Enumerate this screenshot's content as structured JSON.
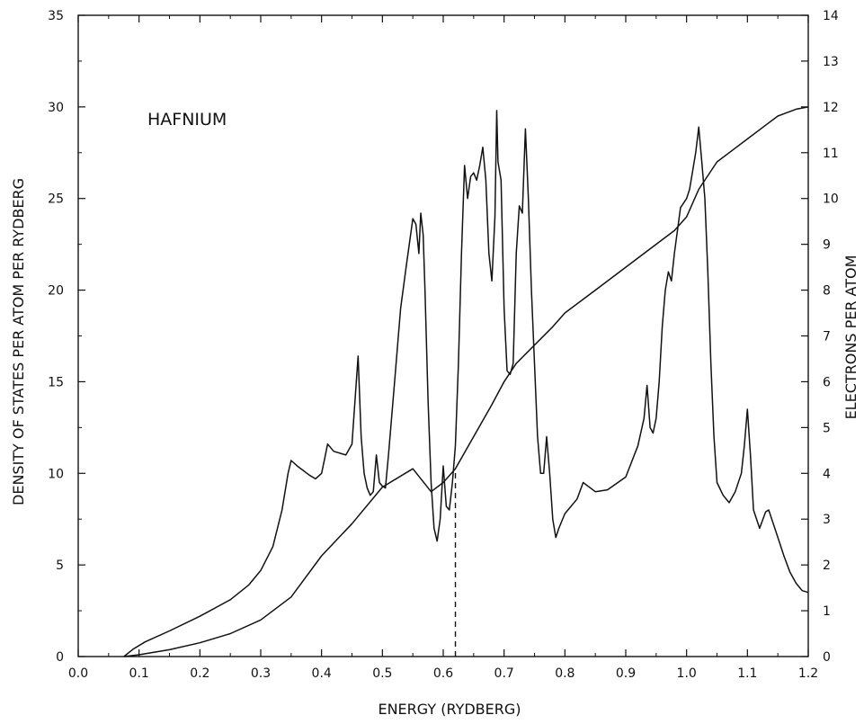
{
  "chart_data": {
    "type": "line",
    "annotation": "HAFNIUM",
    "xlabel": "ENERGY (RYDBERG)",
    "ylabel": "DENSITY OF STATES PER ATOM PER RYDBERG",
    "y2label": "ELECTRONS PER ATOM",
    "xlim": [
      0.0,
      1.2
    ],
    "ylim": [
      0,
      35
    ],
    "y2lim": [
      0,
      14
    ],
    "x_ticks": [
      "0.0",
      "0.1",
      "0.2",
      "0.3",
      "0.4",
      "0.5",
      "0.6",
      "0.7",
      "0.8",
      "0.9",
      "1.0",
      "1.1",
      "1.2"
    ],
    "y_ticks": [
      "0",
      "5",
      "10",
      "15",
      "20",
      "25",
      "30",
      "35"
    ],
    "y2_ticks": [
      "0",
      "1",
      "2",
      "3",
      "4",
      "5",
      "6",
      "7",
      "8",
      "9",
      "10",
      "11",
      "12",
      "13",
      "14"
    ],
    "fermi_energy": 0.62,
    "grid": false,
    "series": [
      {
        "axis": "left",
        "x": [
          0.075,
          0.09,
          0.11,
          0.15,
          0.2,
          0.25,
          0.28,
          0.3,
          0.32,
          0.335,
          0.345,
          0.35,
          0.36,
          0.38,
          0.39,
          0.4,
          0.405,
          0.41,
          0.42,
          0.44,
          0.45,
          0.455,
          0.46,
          0.465,
          0.47,
          0.475,
          0.48,
          0.485,
          0.49,
          0.495,
          0.5,
          0.505,
          0.51,
          0.52,
          0.53,
          0.54,
          0.55,
          0.555,
          0.56,
          0.563,
          0.567,
          0.57,
          0.575,
          0.58,
          0.585,
          0.59,
          0.595,
          0.6,
          0.605,
          0.61,
          0.615,
          0.62,
          0.625,
          0.63,
          0.635,
          0.64,
          0.645,
          0.65,
          0.655,
          0.66,
          0.665,
          0.67,
          0.675,
          0.68,
          0.685,
          0.688,
          0.69,
          0.695,
          0.7,
          0.705,
          0.71,
          0.715,
          0.72,
          0.725,
          0.73,
          0.735,
          0.74,
          0.745,
          0.75,
          0.755,
          0.76,
          0.765,
          0.77,
          0.775,
          0.78,
          0.785,
          0.79,
          0.8,
          0.81,
          0.82,
          0.83,
          0.85,
          0.87,
          0.9,
          0.92,
          0.93,
          0.935,
          0.94,
          0.945,
          0.95,
          0.955,
          0.96,
          0.965,
          0.97,
          0.975,
          0.98,
          0.99,
          1.0,
          1.005,
          1.01,
          1.015,
          1.02,
          1.025,
          1.03,
          1.035,
          1.04,
          1.045,
          1.05,
          1.06,
          1.07,
          1.08,
          1.09,
          1.095,
          1.1,
          1.105,
          1.11,
          1.12,
          1.13,
          1.135,
          1.14,
          1.15,
          1.16,
          1.17,
          1.18,
          1.19,
          1.2
        ],
        "values": [
          0,
          0.4,
          0.8,
          1.4,
          2.2,
          3.1,
          3.9,
          4.7,
          6.0,
          8.0,
          10.0,
          10.7,
          10.4,
          9.9,
          9.7,
          10.0,
          10.8,
          11.6,
          11.2,
          11.0,
          11.6,
          14.0,
          16.4,
          12.0,
          10.0,
          9.2,
          8.8,
          9.0,
          11.0,
          9.5,
          9.3,
          9.2,
          11.0,
          15.0,
          19.0,
          21.5,
          23.9,
          23.6,
          22.0,
          24.2,
          23.0,
          20.0,
          14.0,
          9.5,
          7.0,
          6.3,
          7.5,
          10.4,
          8.2,
          8.0,
          9.5,
          11.5,
          16.0,
          22.0,
          26.8,
          25.0,
          26.2,
          26.4,
          26.0,
          26.8,
          27.8,
          26.0,
          22.0,
          20.5,
          24.0,
          29.8,
          27.0,
          26.0,
          19.0,
          15.6,
          15.4,
          16.0,
          22.0,
          24.6,
          24.2,
          28.8,
          25.0,
          20.0,
          16.0,
          12.0,
          10.0,
          10.0,
          12.0,
          10.0,
          7.5,
          6.5,
          7.0,
          7.8,
          8.2,
          8.6,
          9.5,
          9.0,
          9.1,
          9.8,
          11.5,
          13.0,
          14.8,
          12.5,
          12.2,
          13.0,
          15.0,
          18.0,
          20.0,
          21.0,
          20.5,
          22.0,
          24.5,
          25.0,
          25.5,
          26.5,
          27.5,
          28.9,
          27.0,
          25.0,
          21.0,
          16.0,
          12.0,
          9.5,
          8.8,
          8.4,
          9.0,
          10.0,
          11.5,
          13.5,
          11.0,
          8.0,
          7.0,
          7.9,
          8.0,
          7.5,
          6.5,
          5.5,
          4.6,
          4.0,
          3.6,
          3.5
        ]
      },
      {
        "axis": "right",
        "x": [
          0.075,
          0.1,
          0.15,
          0.2,
          0.25,
          0.3,
          0.35,
          0.4,
          0.45,
          0.5,
          0.55,
          0.58,
          0.6,
          0.62,
          0.65,
          0.68,
          0.7,
          0.72,
          0.75,
          0.78,
          0.8,
          0.85,
          0.9,
          0.95,
          0.98,
          1.0,
          1.02,
          1.05,
          1.08,
          1.1,
          1.13,
          1.15,
          1.18,
          1.2
        ],
        "values": [
          0,
          0.04,
          0.15,
          0.3,
          0.5,
          0.8,
          1.3,
          2.2,
          2.9,
          3.7,
          4.1,
          3.6,
          3.8,
          4.1,
          4.8,
          5.5,
          6.0,
          6.4,
          6.8,
          7.2,
          7.5,
          8.0,
          8.5,
          9.0,
          9.3,
          9.6,
          10.2,
          10.8,
          11.1,
          11.3,
          11.6,
          11.8,
          11.95,
          12.0
        ]
      }
    ]
  }
}
